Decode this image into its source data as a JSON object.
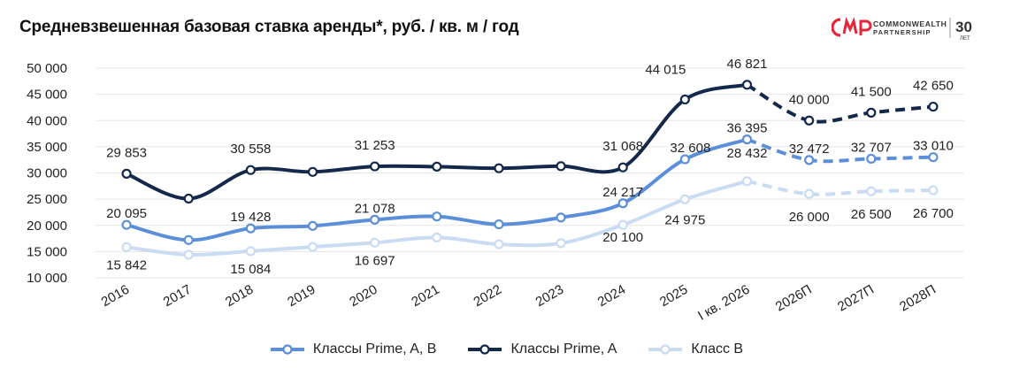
{
  "chart_data": {
    "type": "line",
    "title": "Средневзвешенная базовая ставка аренды*, руб. / кв. м / год",
    "categories": [
      "2016",
      "2017",
      "2018",
      "2019",
      "2020",
      "2021",
      "2022",
      "2023",
      "2024",
      "2025",
      "I кв. 2026",
      "2026П",
      "2027П",
      "2028П"
    ],
    "ylim": [
      10000,
      50000
    ],
    "yticks": [
      "10 000",
      "15 000",
      "20 000",
      "25 000",
      "30 000",
      "35 000",
      "40 000",
      "45 000",
      "50 000"
    ],
    "grid": true,
    "legend_position": "bottom",
    "forecast_from_index": 11,
    "series": [
      {
        "name": "Классы Prime, A, B",
        "color": "#5b8fd9",
        "values": [
          20095,
          17200,
          19428,
          19900,
          21078,
          21700,
          20200,
          21500,
          24217,
          32608,
          36395,
          32472,
          32707,
          33010
        ],
        "labels": [
          "20 095",
          "",
          "19 428",
          "",
          "21 078",
          "",
          "",
          "",
          "24 217",
          "32 608",
          "36 395",
          "32 472",
          "32 707",
          "33 010"
        ]
      },
      {
        "name": "Классы Prime, A",
        "color": "#14284b",
        "values": [
          29853,
          25100,
          30558,
          30200,
          31253,
          31200,
          30900,
          31300,
          31068,
          44015,
          46821,
          40000,
          41500,
          42650
        ],
        "labels": [
          "29 853",
          "",
          "30 558",
          "",
          "31 253",
          "",
          "",
          "",
          "31 068",
          "44 015",
          "46 821",
          "40 000",
          "41 500",
          "42 650"
        ]
      },
      {
        "name": "Класс B",
        "color": "#c9dcf4",
        "values": [
          15842,
          14400,
          15084,
          15900,
          16697,
          17700,
          16400,
          16600,
          20100,
          24975,
          28432,
          26000,
          26500,
          26700
        ],
        "labels": [
          "15 842",
          "",
          "15 084",
          "",
          "16 697",
          "",
          "",
          "",
          "20 100",
          "24 975",
          "28 432",
          "26 000",
          "26 500",
          "26 700"
        ]
      }
    ]
  },
  "logo": {
    "brand_top": "COMMONWEALTH",
    "brand_bottom": "PARTNERSHIP",
    "badge_number": "30",
    "badge_text": "ЛЕТ",
    "monogram": "CMWP",
    "color": "#e3263a"
  }
}
